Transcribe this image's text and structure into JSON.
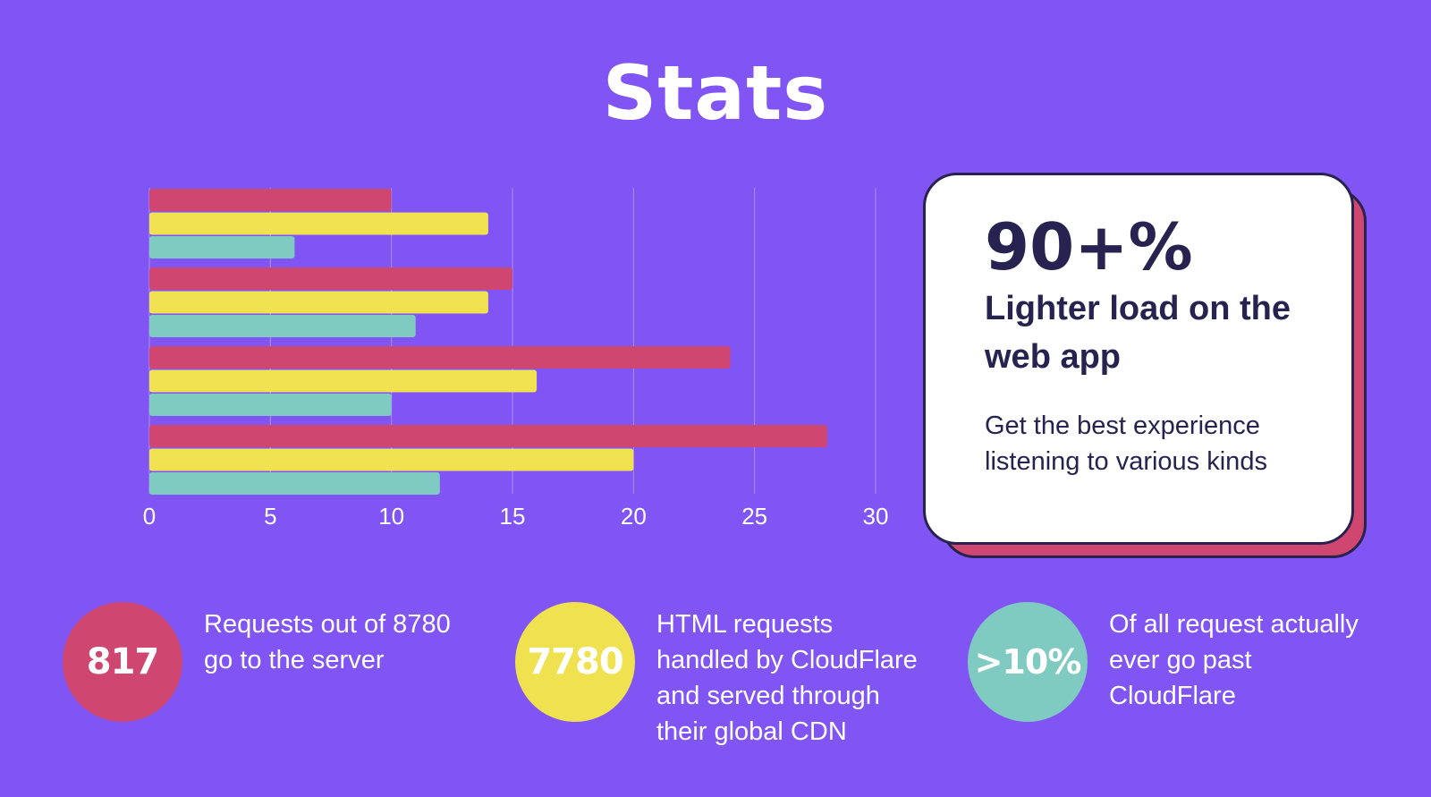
{
  "title": "Stats",
  "colors": {
    "background": "#8155f4",
    "red": "#cf4670",
    "yellow": "#efe14f",
    "teal": "#7fcac1",
    "navy": "#27224f"
  },
  "chart_data": {
    "type": "bar",
    "orientation": "horizontal",
    "categories": [
      "",
      "",
      "",
      ""
    ],
    "series": [
      {
        "color": "#cf4670",
        "values": [
          10,
          15,
          24,
          28
        ]
      },
      {
        "color": "#efe14f",
        "values": [
          14,
          14,
          16,
          20
        ]
      },
      {
        "color": "#7fcac1",
        "values": [
          6,
          11,
          10,
          12
        ]
      }
    ],
    "xlim": [
      0,
      30
    ],
    "xticks": [
      "0",
      "5",
      "10",
      "15",
      "20",
      "25",
      "30"
    ],
    "grid": true,
    "legend": "none"
  },
  "highlight_card": {
    "big": "90+%",
    "heading": "Lighter load on the web app",
    "body": "Get the best experience listening to various kinds"
  },
  "stats": [
    {
      "value": "817",
      "text": "Requests out of 8780\ngo to the server",
      "color": "#cf4670"
    },
    {
      "value": "7780",
      "text": " HTML requests\nhandled by CloudFlare\nand served through\ntheir global CDN",
      "color": "#efe14f"
    },
    {
      "value": ">10%",
      "text": "Of all request actually\never go past\nCloudFlare",
      "color": "#7fcac1"
    }
  ]
}
